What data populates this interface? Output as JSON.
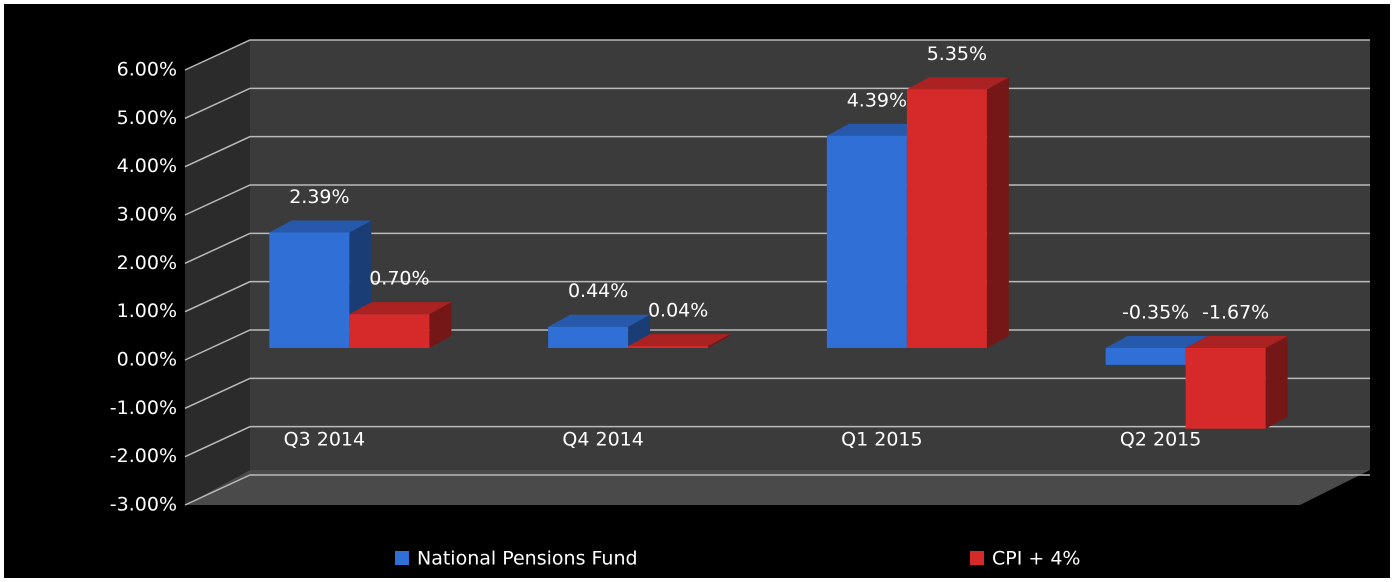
{
  "chart_data": {
    "type": "bar3d",
    "categories": [
      "Q3 2014",
      "Q4 2014",
      "Q1 2015",
      "Q2 2015"
    ],
    "series": [
      {
        "name": "National Pensions Fund",
        "color": "#2f6fd6",
        "values": [
          2.39,
          0.44,
          4.39,
          -0.35
        ],
        "value_labels": [
          "2.39%",
          "0.44%",
          "4.39%",
          "-0.35%"
        ]
      },
      {
        "name": "CPI + 4%",
        "color": "#d62a2a",
        "values": [
          0.7,
          0.04,
          5.35,
          -1.67
        ],
        "value_labels": [
          "0.70%",
          "0.04%",
          "5.35%",
          "-1.67%"
        ]
      }
    ],
    "ylim": [
      -3,
      6
    ],
    "yticks": [
      {
        "value": -3,
        "label": "-3.00%"
      },
      {
        "value": -2,
        "label": "-2.00%"
      },
      {
        "value": -1,
        "label": "-1.00%"
      },
      {
        "value": 0,
        "label": "0.00%"
      },
      {
        "value": 1,
        "label": "1.00%"
      },
      {
        "value": 2,
        "label": "2.00%"
      },
      {
        "value": 3,
        "label": "3.00%"
      },
      {
        "value": 4,
        "label": "4.00%"
      },
      {
        "value": 5,
        "label": "5.00%"
      },
      {
        "value": 6,
        "label": "6.00%"
      }
    ],
    "grid": true,
    "legend": "bottom"
  }
}
